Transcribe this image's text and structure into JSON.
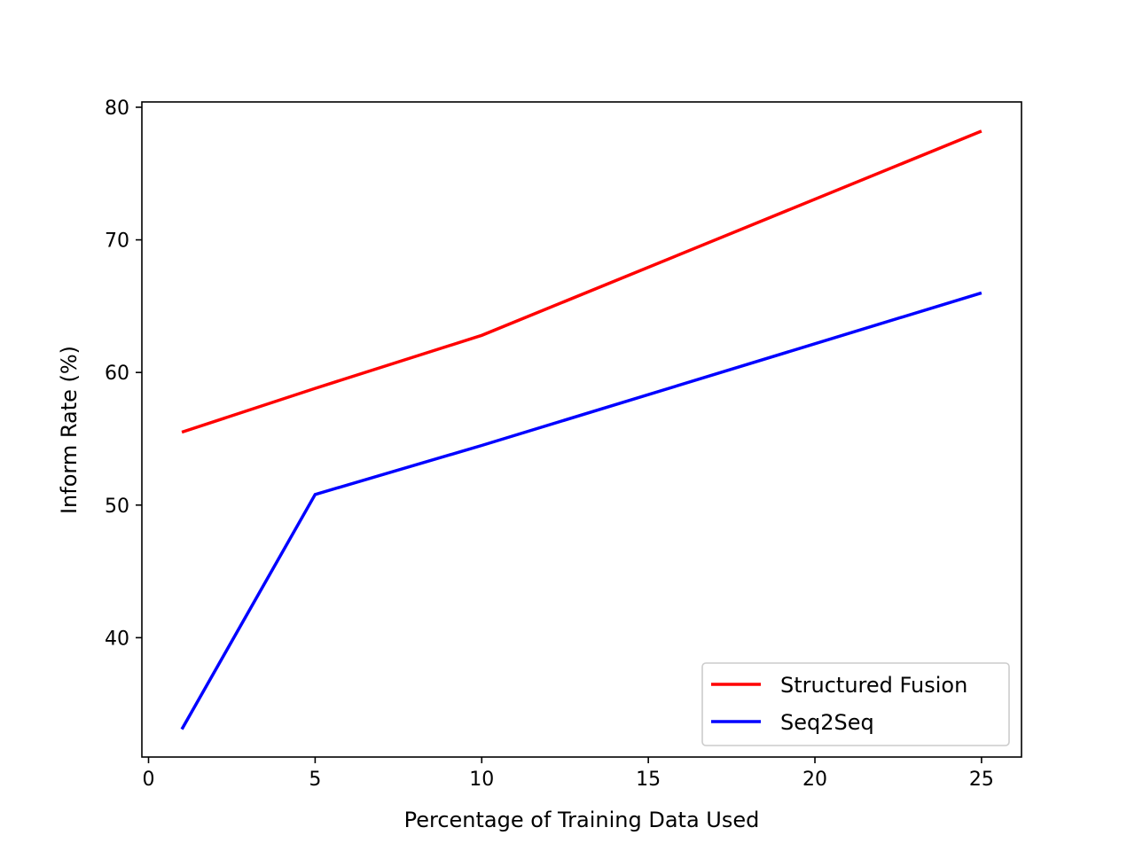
{
  "chart_data": {
    "type": "line",
    "title": "",
    "xlabel": "Percentage of Training Data Used",
    "ylabel": "Inform Rate (%)",
    "xlim": [
      -0.2,
      26.2
    ],
    "ylim": [
      31,
      80.4
    ],
    "xticks": [
      0,
      5,
      10,
      15,
      20,
      25
    ],
    "yticks": [
      40,
      50,
      60,
      70,
      80
    ],
    "grid": false,
    "legend_position": "lower-right",
    "series": [
      {
        "name": "Structured Fusion",
        "color": "#ff0000",
        "x": [
          1,
          5,
          10,
          25
        ],
        "y": [
          55.5,
          58.8,
          62.8,
          78.2
        ]
      },
      {
        "name": "Seq2Seq",
        "color": "#0000ff",
        "x": [
          1,
          5,
          10,
          25
        ],
        "y": [
          33.1,
          50.8,
          54.5,
          66.0
        ]
      }
    ]
  }
}
